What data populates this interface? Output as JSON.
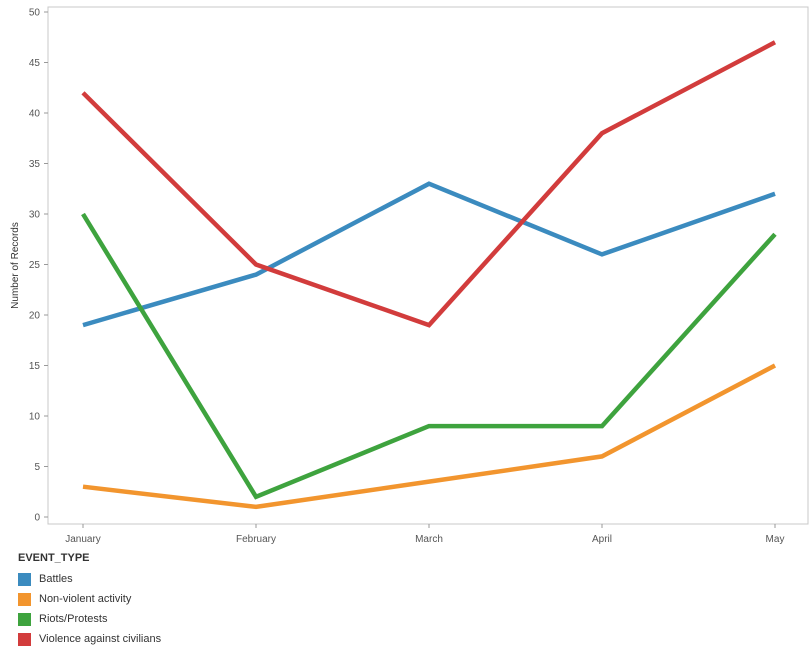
{
  "chart_data": {
    "type": "line",
    "ylabel": "Number of Records",
    "ylim": [
      0,
      50
    ],
    "yticks": [
      0,
      5,
      10,
      15,
      20,
      25,
      30,
      35,
      40,
      45,
      50
    ],
    "categories": [
      "January",
      "February",
      "March",
      "April",
      "May"
    ],
    "grid": false,
    "legend_title": "EVENT_TYPE",
    "legend_position": "bottom-left",
    "series": [
      {
        "name": "Battles",
        "color": "#3b8bbf",
        "values": [
          19,
          24,
          33,
          26,
          32
        ]
      },
      {
        "name": "Non-violent activity",
        "color": "#f2952e",
        "values": [
          3,
          1,
          3.5,
          6,
          15
        ]
      },
      {
        "name": "Riots/Protests",
        "color": "#3ea33e",
        "values": [
          30,
          2,
          9,
          9,
          28
        ]
      },
      {
        "name": "Violence against civilians",
        "color": "#d23c3c",
        "values": [
          42,
          25,
          19,
          38,
          47
        ]
      }
    ]
  }
}
